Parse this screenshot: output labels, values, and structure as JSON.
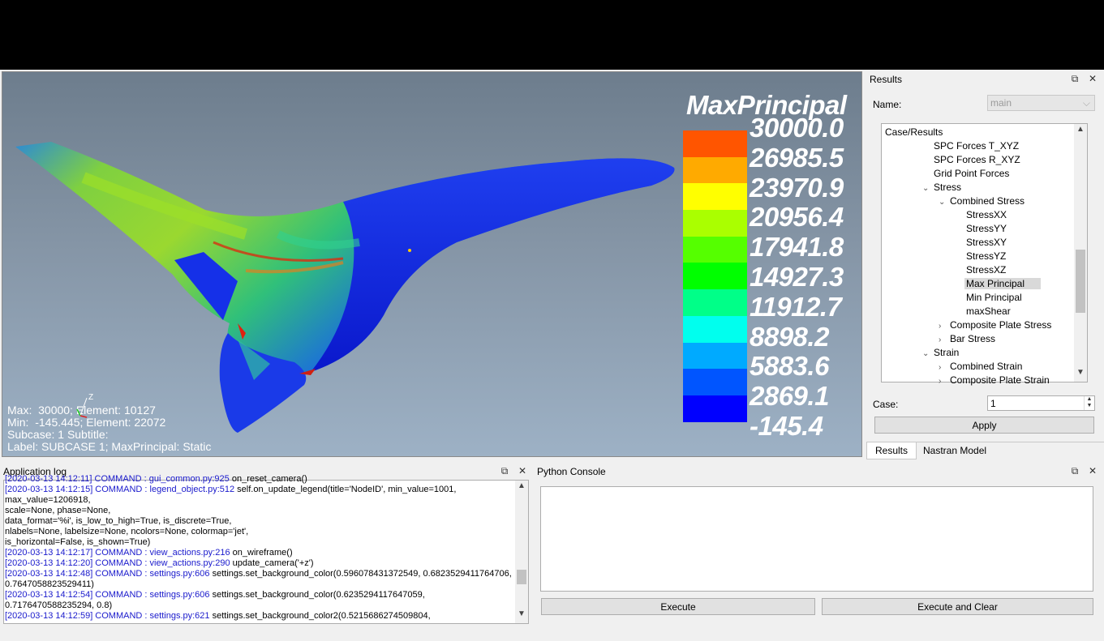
{
  "viewport": {
    "legend": {
      "title": "MaxPrincipal",
      "labels": [
        "30000.0",
        "26985.5",
        "23970.9",
        "20956.4",
        "17941.8",
        "14927.3",
        "11912.7",
        "8898.2",
        "5883.6",
        "2869.1",
        "-145.4"
      ],
      "colors": [
        "#ff5500",
        "#ffaa00",
        "#ffff00",
        "#aaff00",
        "#55ff00",
        "#00ff00",
        "#00ff88",
        "#00ffee",
        "#00aaff",
        "#0055ff",
        "#0000ff"
      ]
    },
    "info": {
      "line1": "Max:  30000; Element: 10127",
      "line2": "Min:  -145.445; Element: 22072",
      "line3": "Subcase: 1 Subtitle:",
      "line4": "Label: SUBCASE 1; MaxPrincipal: Static"
    },
    "axis_label": "Z"
  },
  "results": {
    "title": "Results",
    "name_label": "Name:",
    "name_value": "main",
    "tree": [
      {
        "label": "Case/Results",
        "level": 0,
        "arrow": ""
      },
      {
        "label": "SPC Forces T_XYZ",
        "level": 4,
        "arrow": ""
      },
      {
        "label": "SPC Forces R_XYZ",
        "level": 4,
        "arrow": ""
      },
      {
        "label": "Grid Point Forces",
        "level": 4,
        "arrow": ""
      },
      {
        "label": "Stress",
        "level": 4,
        "arrow": "down"
      },
      {
        "label": "Combined Stress",
        "level": 5,
        "arrow": "down"
      },
      {
        "label": "StressXX",
        "level": 6,
        "arrow": ""
      },
      {
        "label": "StressYY",
        "level": 6,
        "arrow": ""
      },
      {
        "label": "StressXY",
        "level": 6,
        "arrow": ""
      },
      {
        "label": "StressYZ",
        "level": 6,
        "arrow": ""
      },
      {
        "label": "StressXZ",
        "level": 6,
        "arrow": ""
      },
      {
        "label": "Max Principal",
        "level": 6,
        "arrow": "",
        "selected": true
      },
      {
        "label": "Min Principal",
        "level": 6,
        "arrow": ""
      },
      {
        "label": "maxShear",
        "level": 6,
        "arrow": ""
      },
      {
        "label": "Composite Plate Stress",
        "level": 5,
        "arrow": "right"
      },
      {
        "label": "Bar Stress",
        "level": 5,
        "arrow": "right"
      },
      {
        "label": "Strain",
        "level": 4,
        "arrow": "down"
      },
      {
        "label": "Combined Strain",
        "level": 5,
        "arrow": "right"
      },
      {
        "label": "Composite Plate Strain",
        "level": 5,
        "arrow": "right"
      }
    ],
    "case_label": "Case:",
    "case_value": "1",
    "apply_label": "Apply",
    "tabs": [
      "Results",
      "Nastran Model"
    ]
  },
  "applog": {
    "title": "Application log",
    "lines": [
      {
        "ts": "[2020-03-13 14:12:11] COMMAND : gui_common.py:925",
        "msg": " on_reset_camera()"
      },
      {
        "ts": "[2020-03-13 14:12:15] COMMAND : legend_object.py:512",
        "msg": " self.on_update_legend(title='NodeID', min_value=1001,"
      },
      {
        "ts": "",
        "msg": "max_value=1206918,"
      },
      {
        "ts": "",
        "msg": "scale=None, phase=None,"
      },
      {
        "ts": "",
        "msg": "data_format='%i', is_low_to_high=True, is_discrete=True,"
      },
      {
        "ts": "",
        "msg": "nlabels=None, labelsize=None, ncolors=None, colormap='jet',"
      },
      {
        "ts": "",
        "msg": "is_horizontal=False, is_shown=True)"
      },
      {
        "ts": "[2020-03-13 14:12:17] COMMAND : view_actions.py:216",
        "msg": " on_wireframe()"
      },
      {
        "ts": "[2020-03-13 14:12:20] COMMAND : view_actions.py:290",
        "msg": " update_camera('+z')"
      },
      {
        "ts": "[2020-03-13 14:12:48] COMMAND : settings.py:606",
        "msg": " settings.set_background_color(0.596078431372549, 0.6823529411764706,"
      },
      {
        "ts": "",
        "msg": "0.7647058823529411)"
      },
      {
        "ts": "[2020-03-13 14:12:54] COMMAND : settings.py:606",
        "msg": " settings.set_background_color(0.6235294117647059,"
      },
      {
        "ts": "",
        "msg": "0.7176470588235294, 0.8)"
      },
      {
        "ts": "[2020-03-13 14:12:59] COMMAND : settings.py:621",
        "msg": " settings.set_background_color2(0.5215686274509804,"
      }
    ]
  },
  "python_console": {
    "title": "Python Console",
    "execute_label": "Execute",
    "execute_clear_label": "Execute and Clear"
  },
  "icons": {
    "float": "⧉",
    "close": "✕"
  }
}
